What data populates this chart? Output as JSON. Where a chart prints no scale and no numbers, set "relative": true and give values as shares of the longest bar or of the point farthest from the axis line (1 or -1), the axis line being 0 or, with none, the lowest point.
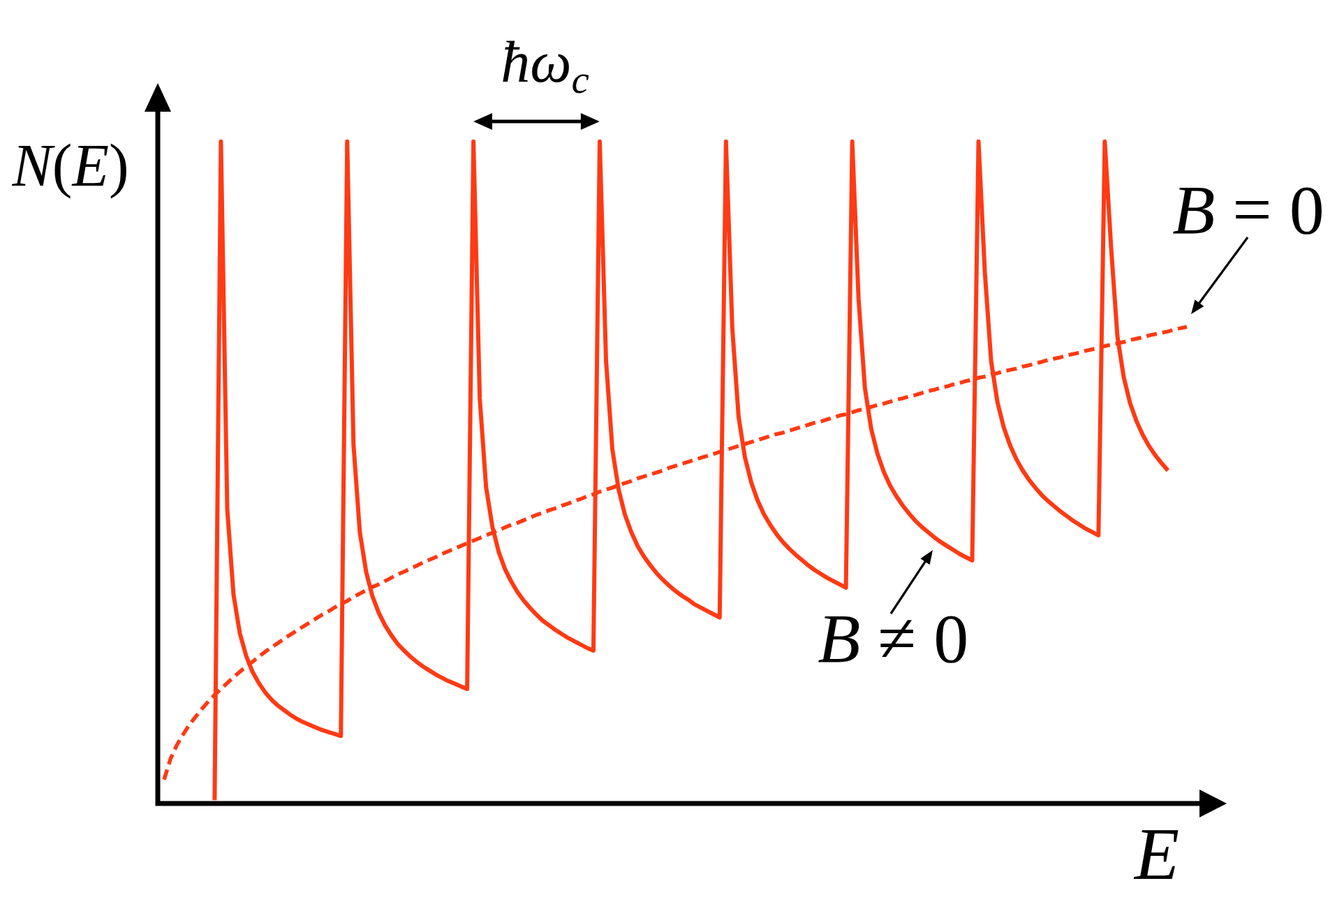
{
  "chart_data": {
    "type": "line",
    "xlabel": "E",
    "ylabel": "N(E)",
    "annotations": [
      "ħω$_{c}$"
    ],
    "relative": true,
    "categories": [
      null,
      null,
      null,
      null,
      null,
      null,
      null,
      null,
      null,
      null,
      null,
      null,
      null,
      null,
      null,
      null,
      null,
      null,
      null,
      null,
      null,
      null,
      null,
      null,
      null,
      null,
      null,
      null,
      null,
      null,
      null,
      null,
      null,
      null,
      null,
      null,
      null,
      null,
      null,
      null,
      null,
      null,
      null,
      null,
      null,
      null,
      null,
      null,
      null,
      null,
      null,
      null,
      null,
      null,
      null,
      null,
      null,
      null,
      null,
      null,
      null,
      null,
      null,
      null,
      null,
      null,
      null,
      null,
      null,
      null,
      null,
      null,
      null,
      null,
      null,
      null,
      null,
      null,
      null,
      null,
      null,
      null,
      null,
      null,
      null,
      null,
      null,
      null,
      null,
      null,
      null,
      null,
      null,
      null,
      null,
      null,
      null,
      null,
      null,
      null,
      null,
      null,
      null,
      null,
      null,
      null,
      null,
      null,
      null,
      null,
      null,
      null,
      null,
      null,
      null,
      null,
      null,
      null,
      null,
      null,
      null,
      null,
      null,
      null,
      null,
      null,
      null,
      null,
      null,
      null,
      null,
      null,
      null,
      null,
      null,
      null,
      null,
      null,
      null,
      null,
      null,
      null,
      null,
      null,
      null,
      null,
      null,
      null,
      null,
      null,
      null,
      null,
      null,
      null,
      null,
      null,
      null,
      null,
      null,
      null,
      null,
      null,
      null,
      null,
      null,
      null
    ],
    "series": [
      {
        "name": "B ≠ 0",
        "color": "#ff3a14",
        "line_style": "solid",
        "values": [
          null,
          null,
          null,
          null,
          null,
          null,
          null,
          null,
          null,
          0.005,
          1,
          0.445,
          0.315,
          0.257,
          0.223,
          0.199,
          0.182,
          0.168,
          0.157,
          0.148,
          0.141,
          0.134,
          0.128,
          0.123,
          0.119,
          0.115,
          0.111,
          0.108,
          0.105,
          0.102,
          1,
          0.542,
          0.41,
          0.35,
          0.313,
          0.288,
          0.269,
          0.254,
          0.241,
          0.231,
          0.222,
          0.214,
          0.207,
          0.201,
          0.195,
          0.19,
          0.185,
          0.181,
          0.177,
          0.173,
          1,
          0.612,
          0.478,
          0.418,
          0.38,
          0.354,
          0.335,
          0.319,
          0.306,
          0.295,
          0.285,
          0.276,
          0.269,
          0.262,
          0.256,
          0.25,
          0.245,
          0.24,
          0.235,
          0.231,
          1,
          0.669,
          0.535,
          0.474,
          0.436,
          0.41,
          0.389,
          0.373,
          0.36,
          0.348,
          0.338,
          0.329,
          0.321,
          0.314,
          0.308,
          0.301,
          0.296,
          0.291,
          0.286,
          0.281,
          1,
          0.718,
          0.584,
          0.523,
          0.485,
          0.458,
          0.437,
          0.421,
          0.407,
          0.395,
          0.385,
          0.376,
          0.368,
          0.36,
          0.353,
          0.347,
          0.341,
          0.336,
          0.331,
          0.326,
          1,
          0.762,
          0.628,
          0.566,
          0.528,
          0.501,
          0.48,
          0.464,
          0.45,
          0.438,
          0.427,
          0.418,
          0.41,
          0.402,
          0.395,
          0.389,
          0.383,
          0.377,
          0.372,
          0.367,
          1,
          0.803,
          0.668,
          0.606,
          0.568,
          0.541,
          0.52,
          0.503,
          0.489,
          0.477,
          0.466,
          0.457,
          0.449,
          0.441,
          0.434,
          0.427,
          0.421,
          0.415,
          0.41,
          0.405,
          1,
          0.84,
          0.706,
          0.644,
          0.605,
          0.578,
          0.557,
          0.54,
          0.526,
          0.514,
          0.503,
          null,
          null,
          null,
          null,
          null
        ]
      },
      {
        "name": "B = 0",
        "color": "#ff3a14",
        "line_style": "dashed",
        "values": [
          null,
          0.036,
          0.067,
          0.088,
          0.104,
          0.119,
          0.131,
          0.143,
          0.154,
          0.164,
          0.173,
          0.182,
          0.191,
          0.199,
          0.207,
          0.214,
          0.222,
          0.229,
          0.236,
          0.242,
          0.249,
          0.255,
          0.261,
          0.267,
          0.273,
          0.279,
          0.285,
          0.29,
          0.296,
          0.301,
          0.306,
          0.312,
          0.317,
          0.322,
          0.327,
          0.331,
          0.336,
          0.341,
          0.346,
          0.35,
          0.355,
          0.359,
          0.364,
          0.368,
          0.372,
          0.377,
          0.381,
          0.385,
          0.389,
          0.393,
          0.397,
          0.401,
          0.405,
          0.409,
          0.413,
          0.417,
          0.421,
          0.424,
          0.428,
          0.432,
          0.436,
          0.439,
          0.443,
          0.446,
          0.45,
          0.453,
          0.457,
          0.46,
          0.464,
          0.467,
          0.471,
          0.474,
          0.477,
          0.481,
          0.484,
          0.487,
          0.491,
          0.494,
          0.497,
          0.5,
          0.503,
          0.507,
          0.51,
          0.513,
          0.516,
          0.519,
          0.522,
          0.525,
          0.528,
          0.531,
          0.534,
          0.537,
          0.54,
          0.543,
          0.546,
          0.549,
          0.552,
          0.555,
          0.558,
          0.56,
          0.563,
          0.566,
          0.569,
          0.572,
          0.575,
          0.577,
          0.58,
          0.583,
          0.586,
          0.588,
          0.591,
          0.594,
          0.596,
          0.599,
          0.602,
          0.604,
          0.607,
          0.61,
          0.612,
          0.615,
          0.617,
          0.62,
          0.623,
          0.625,
          0.628,
          0.63,
          0.633,
          0.635,
          0.638,
          0.64,
          0.643,
          0.645,
          0.648,
          0.65,
          0.653,
          0.655,
          0.657,
          0.66,
          0.662,
          0.665,
          0.667,
          0.67,
          0.672,
          0.674,
          0.677,
          0.679,
          0.681,
          0.684,
          0.686,
          0.688,
          0.691,
          0.693,
          0.695,
          0.697,
          0.7,
          0.702,
          0.704,
          0.707,
          0.709,
          0.711,
          0.713,
          0.716,
          0.718,
          0.72,
          null,
          null
        ]
      }
    ]
  }
}
